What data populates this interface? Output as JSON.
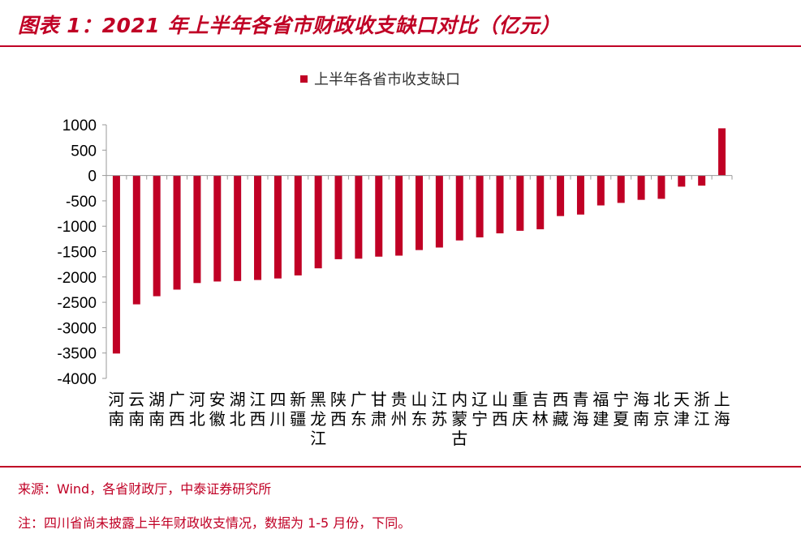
{
  "header": {
    "title": "图表 1：2021 年上半年各省市财政收支缺口对比（亿元）"
  },
  "chart_data": {
    "type": "bar",
    "title": "",
    "xlabel": "",
    "ylabel": "",
    "ylim": [
      -4000,
      1000
    ],
    "yticks": [
      1000,
      500,
      0,
      -500,
      -1000,
      -1500,
      -2000,
      -2500,
      -3000,
      -3500,
      -4000
    ],
    "grid": false,
    "legend_position": "top",
    "series": [
      {
        "name": "上半年各省市收支缺口",
        "color": "#c00025",
        "values": [
          -3510,
          -2540,
          -2380,
          -2250,
          -2120,
          -2090,
          -2080,
          -2060,
          -2030,
          -1970,
          -1830,
          -1650,
          -1640,
          -1600,
          -1580,
          -1470,
          -1420,
          -1280,
          -1220,
          -1140,
          -1090,
          -1060,
          -800,
          -770,
          -590,
          -540,
          -480,
          -460,
          -220,
          -200,
          930
        ]
      }
    ],
    "categories": [
      "河南",
      "云南",
      "湖南",
      "广西",
      "河北",
      "安徽",
      "湖北",
      "江西",
      "四川",
      "新疆",
      "黑龙江",
      "陕西",
      "广东",
      "甘肃",
      "贵州",
      "山东",
      "江苏",
      "内蒙古",
      "辽宁",
      "山西",
      "重庆",
      "吉林",
      "西藏",
      "青海",
      "福建",
      "宁夏",
      "海南",
      "北京",
      "天津",
      "浙江",
      "上海"
    ]
  },
  "footer": {
    "source": "来源：Wind，各省财政厅，中泰证券研究所",
    "note": "注：四川省尚未披露上半年财政收支情况，数据为 1-5 月份，下同。"
  }
}
